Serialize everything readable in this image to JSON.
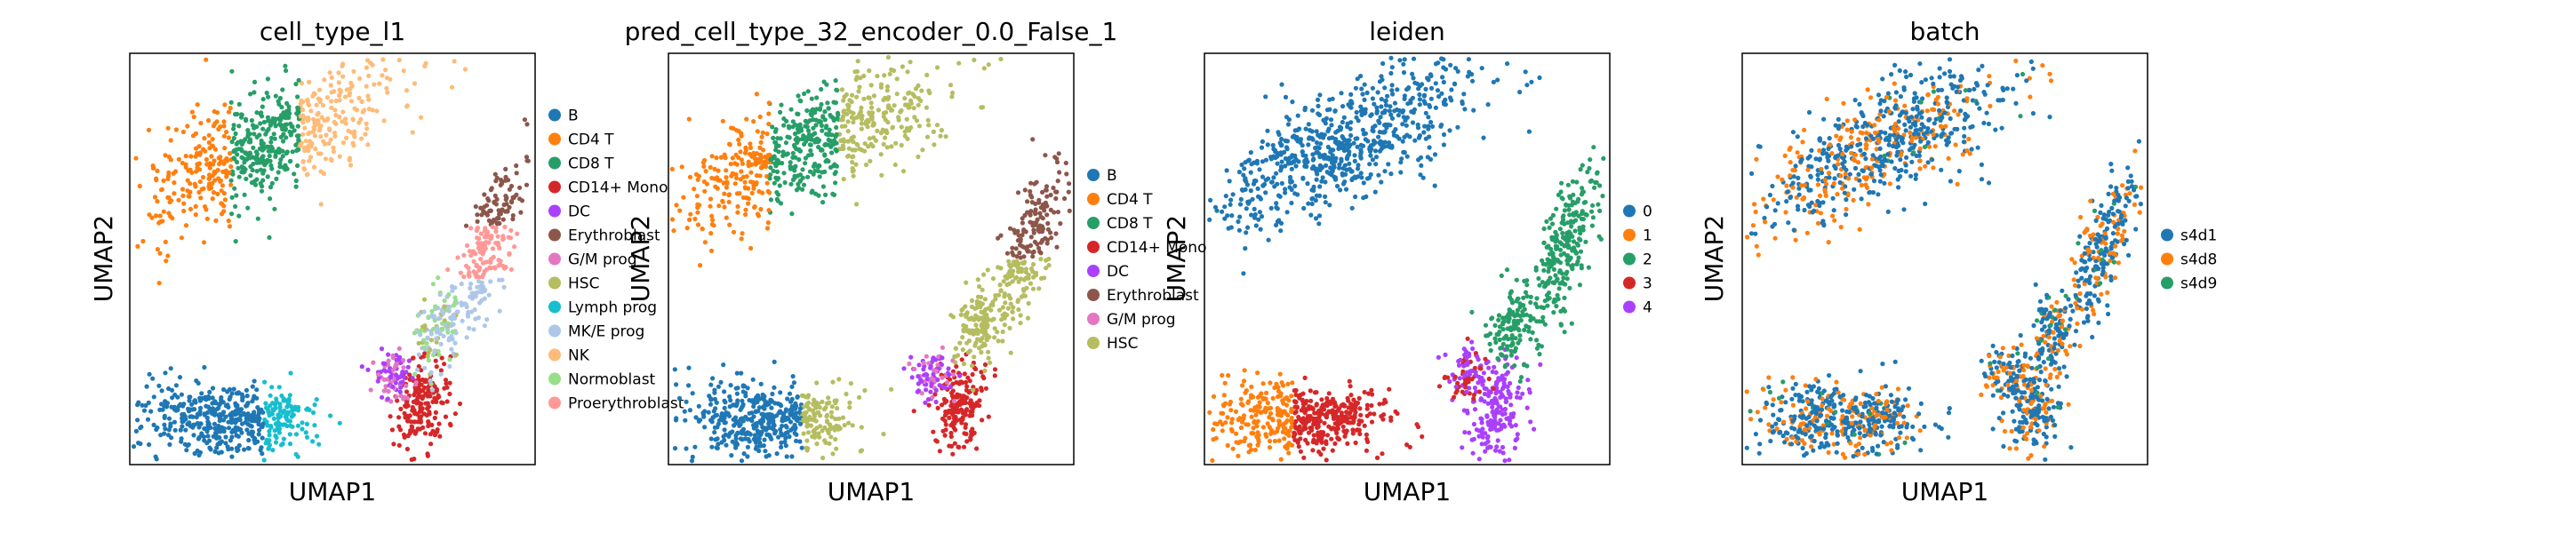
{
  "figure": {
    "panels": [
      {
        "title": "cell_type_l1",
        "legend_title": ""
      },
      {
        "title": "pred_cell_type_32_encoder_0.0_False_1",
        "legend_title": ""
      },
      {
        "title": "leiden",
        "legend_title": ""
      },
      {
        "title": "batch",
        "legend_title": ""
      }
    ]
  },
  "chart_data": [
    {
      "type": "scatter",
      "title": "cell_type_l1",
      "xlabel": "UMAP1",
      "ylabel": "UMAP2",
      "grid": false,
      "ticks": "none",
      "legend_placement": "right",
      "categories": [
        "B",
        "CD4 T",
        "CD8 T",
        "CD14+ Mono",
        "DC",
        "Erythroblast",
        "G/M prog",
        "HSC",
        "Lymph prog",
        "MK/E prog",
        "NK",
        "Normoblast",
        "Proerythroblast"
      ],
      "colors": [
        "#1f77b4",
        "#ff7f0e",
        "#279e68",
        "#d62728",
        "#aa40fc",
        "#8c564b",
        "#e377c2",
        "#b5bd61",
        "#17becf",
        "#aec7e8",
        "#ffbb78",
        "#98df8a",
        "#ff9896"
      ]
    },
    {
      "type": "scatter",
      "title": "pred_cell_type_32_encoder_0.0_False_1",
      "xlabel": "UMAP1",
      "ylabel": "UMAP2",
      "grid": false,
      "ticks": "none",
      "legend_placement": "right",
      "categories": [
        "B",
        "CD4 T",
        "CD8 T",
        "CD14+ Mono",
        "DC",
        "Erythroblast",
        "G/M prog",
        "HSC"
      ],
      "colors": [
        "#1f77b4",
        "#ff7f0e",
        "#279e68",
        "#d62728",
        "#aa40fc",
        "#8c564b",
        "#e377c2",
        "#b5bd61"
      ]
    },
    {
      "type": "scatter",
      "title": "leiden",
      "xlabel": "UMAP1",
      "ylabel": "UMAP2",
      "grid": false,
      "ticks": "none",
      "legend_placement": "right",
      "categories": [
        "0",
        "1",
        "2",
        "3",
        "4"
      ],
      "colors": [
        "#1f77b4",
        "#ff7f0e",
        "#279e68",
        "#d62728",
        "#aa40fc"
      ]
    },
    {
      "type": "scatter",
      "title": "batch",
      "xlabel": "UMAP1",
      "ylabel": "UMAP2",
      "grid": false,
      "ticks": "none",
      "legend_placement": "right",
      "categories": [
        "s4d1",
        "s4d8",
        "s4d9"
      ],
      "colors": [
        "#1f77b4",
        "#ff7f0e",
        "#279e68"
      ]
    }
  ]
}
